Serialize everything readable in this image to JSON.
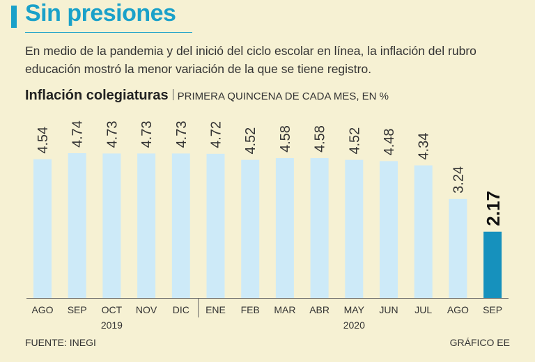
{
  "header": {
    "title": "Sin presiones",
    "subtitle": "En medio de la pandemia y del inició del ciclo escolar en línea, la inflación del rubro educación mostró la menor variación de la que se tiene registro."
  },
  "chart_head": {
    "title": "Inflación colegiaturas",
    "unit": "PRIMERA QUINCENA DE CADA MES, EN %"
  },
  "chart_data": {
    "type": "bar",
    "title": "Inflación colegiaturas",
    "subtitle": "PRIMERA QUINCENA DE CADA MES, EN %",
    "categories": [
      "AGO",
      "SEP",
      "OCT",
      "NOV",
      "DIC",
      "ENE",
      "FEB",
      "MAR",
      "ABR",
      "MAY",
      "JUN",
      "JUL",
      "AGO",
      "SEP"
    ],
    "values": [
      4.54,
      4.74,
      4.73,
      4.73,
      4.73,
      4.72,
      4.52,
      4.58,
      4.58,
      4.52,
      4.48,
      4.34,
      3.24,
      2.17
    ],
    "labels": [
      "4.54",
      "4.74",
      "4.73",
      "4.73",
      "4.73",
      "4.72",
      "4.52",
      "4.58",
      "4.58",
      "4.52",
      "4.48",
      "4.34",
      "3.24",
      "2.17"
    ],
    "years": [
      {
        "label": "2019",
        "start": 0,
        "end": 4
      },
      {
        "label": "2020",
        "start": 5,
        "end": 13
      }
    ],
    "highlight_index": 13,
    "ylim": [
      0,
      4.74
    ],
    "colors": {
      "bar": "#cdeaf8",
      "highlight": "#1691bd",
      "axis": "#666666",
      "text": "#333333"
    }
  },
  "footer": {
    "source": "FUENTE: INEGI",
    "credit": "GRÁFICO EE"
  }
}
